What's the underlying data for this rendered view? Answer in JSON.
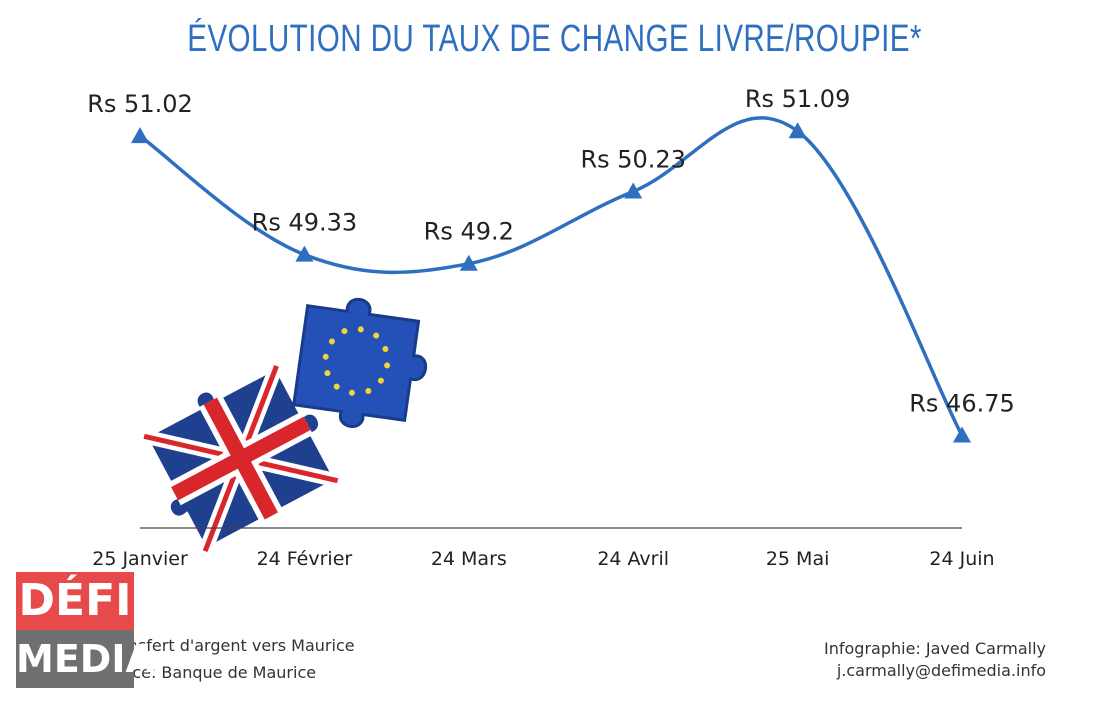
{
  "chart_data": {
    "type": "line",
    "title": "ÉVOLUTION DU TAUX DE CHANGE LIVRE/ROUPIE*",
    "categories": [
      "25 Janvier",
      "24 Février",
      "24 Mars",
      "24 Avril",
      "25 Mai",
      "24 Juin"
    ],
    "values": [
      51.02,
      49.33,
      49.2,
      50.23,
      51.09,
      46.75
    ],
    "data_labels": [
      "Rs 51.02",
      "Rs 49.33",
      "Rs 49.2",
      "Rs 50.23",
      "Rs 51.09",
      "Rs 46.75"
    ],
    "xlabel": "",
    "ylabel": "",
    "ylim": [
      46.2,
      51.6
    ],
    "grid": false,
    "marker": "triangle",
    "line_color": "#2f6fc0",
    "smooth": true
  },
  "footnotes": {
    "note": "*Transfert d'argent vers Maurice",
    "source": "Source: Banque de Maurice",
    "credit": "Infographie: Javed Carmally",
    "email": "j.carmally@defimedia.info"
  },
  "logo": {
    "top": "DÉFI",
    "bottom": "MEDIA",
    "top_color": "#e64a4a",
    "bottom_color": "#707070"
  },
  "illustration": {
    "icon": "uk-eu-puzzle-pieces-illustration",
    "colors": [
      "#1f3f8f",
      "#d9262d",
      "#2451b8",
      "#f2d33a"
    ]
  }
}
